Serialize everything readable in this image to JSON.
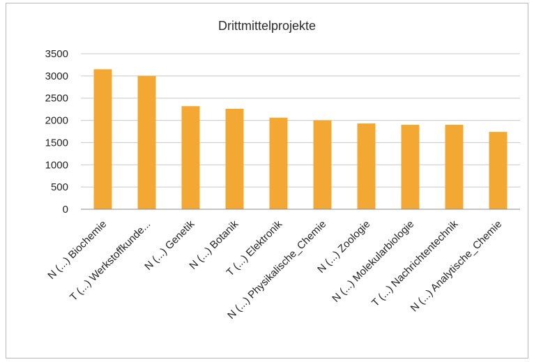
{
  "chart_data": {
    "type": "bar",
    "title": "Drittmittelprojekte",
    "xlabel": "",
    "ylabel": "",
    "ylim": [
      0,
      3500
    ],
    "yticks": [
      0,
      500,
      1000,
      1500,
      2000,
      2500,
      3000,
      3500
    ],
    "grid": true,
    "legend": "none",
    "bar_color": "#F4A834",
    "categories": [
      "N (...) Biochemie",
      "T (...) Werkstoffkunde...",
      "N (...) Genetik",
      "N (...) Botanik",
      "T (...) Elektronik",
      "N (...) Physikalische_Chemie",
      "N (...) Zoologie",
      "N (...) Molekularbiologie",
      "T (...) Nachrichtentechnik",
      "N (...) Analytische_Chemie"
    ],
    "values": [
      3150,
      3000,
      2320,
      2260,
      2060,
      2000,
      1930,
      1900,
      1900,
      1740
    ]
  }
}
